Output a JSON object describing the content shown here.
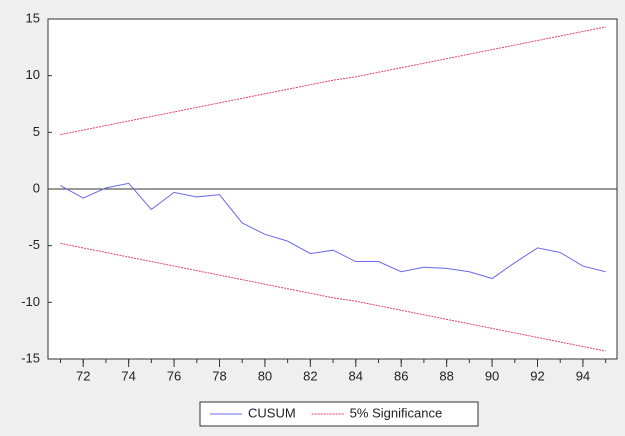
{
  "chart_data": {
    "type": "line",
    "x": [
      71,
      72,
      73,
      74,
      75,
      76,
      77,
      78,
      79,
      80,
      81,
      82,
      83,
      84,
      85,
      86,
      87,
      88,
      89,
      90,
      91,
      92,
      93,
      94,
      95
    ],
    "series": [
      {
        "name": "CUSUM",
        "color": "#6a6ae8",
        "values": [
          0.3,
          -0.8,
          0.1,
          0.5,
          -1.8,
          -0.3,
          -0.7,
          -0.5,
          -3.0,
          -4.0,
          -4.6,
          -5.7,
          -5.4,
          -6.4,
          -6.4,
          -7.3,
          -6.9,
          -7.0,
          -7.3,
          -7.9,
          -6.5,
          -5.2,
          -5.6,
          -6.8,
          -7.3
        ]
      },
      {
        "name": "5% Significance",
        "color": "#e8406a",
        "values": [
          4.8,
          5.2,
          5.6,
          6.0,
          6.4,
          6.8,
          7.2,
          7.6,
          8.0,
          8.4,
          8.8,
          9.2,
          9.6,
          9.9,
          10.3,
          10.7,
          11.1,
          11.5,
          11.9,
          12.3,
          12.7,
          13.1,
          13.5,
          13.9,
          14.3
        ],
        "lower": [
          -4.8,
          -5.2,
          -5.6,
          -6.0,
          -6.4,
          -6.8,
          -7.2,
          -7.6,
          -8.0,
          -8.4,
          -8.8,
          -9.2,
          -9.6,
          -9.9,
          -10.3,
          -10.7,
          -11.1,
          -11.5,
          -11.9,
          -12.3,
          -12.7,
          -13.1,
          -13.5,
          -13.9,
          -14.3
        ]
      }
    ],
    "xlim": [
      70.45,
      95.5
    ],
    "xticks": [
      72,
      74,
      76,
      78,
      80,
      82,
      84,
      86,
      88,
      90,
      92,
      94
    ],
    "ylim": [
      -15,
      15
    ],
    "yticks": [
      -15,
      -10,
      -5,
      0,
      5,
      10,
      15
    ],
    "zero_line": true,
    "legend": "bottom"
  }
}
